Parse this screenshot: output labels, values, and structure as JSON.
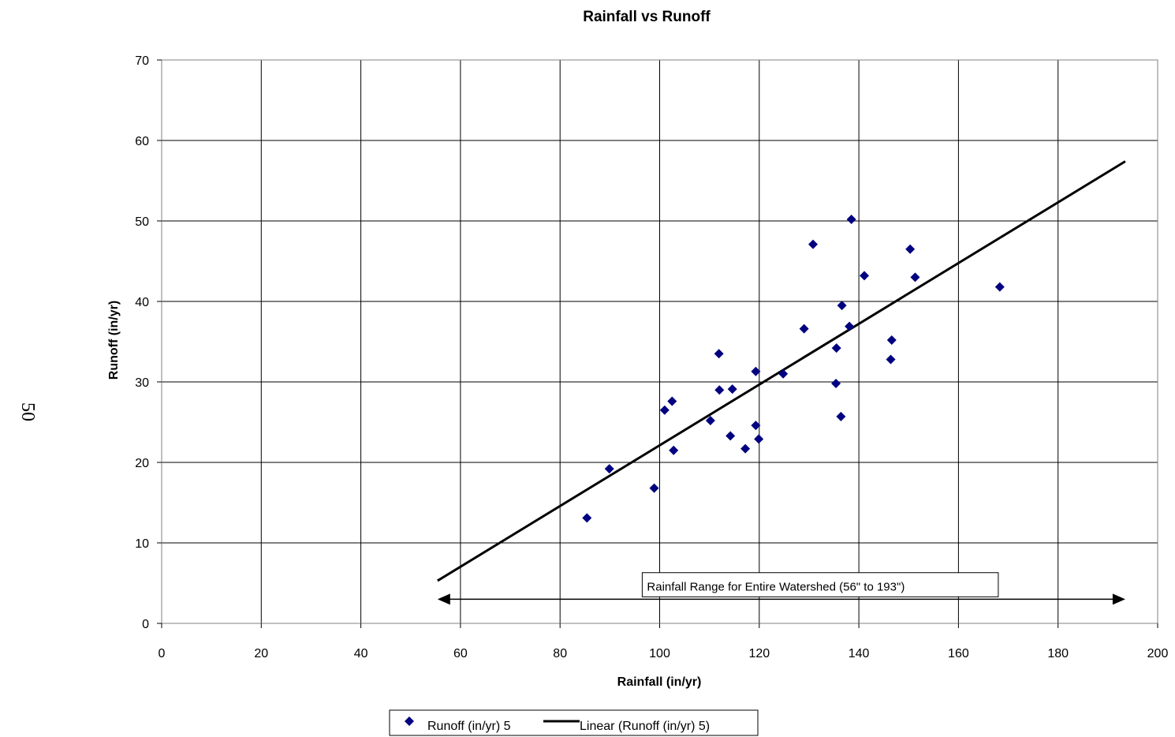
{
  "page_number": "50",
  "colors": {
    "marker": "#000080",
    "trendline": "#000000",
    "grid": "#000000",
    "background": "#ffffff"
  },
  "chart_data": {
    "type": "scatter",
    "title": "Rainfall vs Runoff",
    "xlabel": "Rainfall (in/yr)",
    "ylabel": "Runoff (in/yr)",
    "xlim": [
      0,
      200
    ],
    "ylim": [
      0,
      70
    ],
    "xticks": [
      "0",
      "20",
      "40",
      "60",
      "80",
      "100",
      "120",
      "140",
      "160",
      "180",
      "200"
    ],
    "yticks": [
      "0",
      "10",
      "20",
      "30",
      "40",
      "50",
      "60",
      "70"
    ],
    "grid": true,
    "legend_position": "bottom",
    "series": [
      {
        "name": "Runoff (in/yr) 5",
        "marker": "diamond",
        "points": [
          [
            85.4,
            13.1
          ],
          [
            89.9,
            19.2
          ],
          [
            98.9,
            16.8
          ],
          [
            101.0,
            26.5
          ],
          [
            102.5,
            27.6
          ],
          [
            102.8,
            21.5
          ],
          [
            110.2,
            25.2
          ],
          [
            111.9,
            33.5
          ],
          [
            112.0,
            29.0
          ],
          [
            114.2,
            23.3
          ],
          [
            114.6,
            29.1
          ],
          [
            117.2,
            21.7
          ],
          [
            119.3,
            31.3
          ],
          [
            119.3,
            24.6
          ],
          [
            119.9,
            22.9
          ],
          [
            124.8,
            31.0
          ],
          [
            129.0,
            36.6
          ],
          [
            130.8,
            47.1
          ],
          [
            135.4,
            29.8
          ],
          [
            135.5,
            34.2
          ],
          [
            136.4,
            25.7
          ],
          [
            136.6,
            39.5
          ],
          [
            138.1,
            36.9
          ],
          [
            138.5,
            50.2
          ],
          [
            141.1,
            43.2
          ],
          [
            146.4,
            32.8
          ],
          [
            146.6,
            35.2
          ],
          [
            150.3,
            46.5
          ],
          [
            151.3,
            43.0
          ],
          [
            168.3,
            41.8
          ]
        ]
      },
      {
        "name": "Linear (Runoff (in/yr) 5)",
        "type": "line",
        "points": [
          [
            55.4,
            5.3
          ],
          [
            193.5,
            57.4
          ]
        ]
      }
    ],
    "annotations": [
      {
        "text": "Rainfall Range for Entire Watershed (56\" to 193\")",
        "arrow_range": [
          55.4,
          193.5
        ],
        "arrow_y": 3.0,
        "label_x_range": [
          96.5,
          168.0
        ],
        "label_y_range": [
          3.3,
          6.3
        ]
      }
    ]
  }
}
